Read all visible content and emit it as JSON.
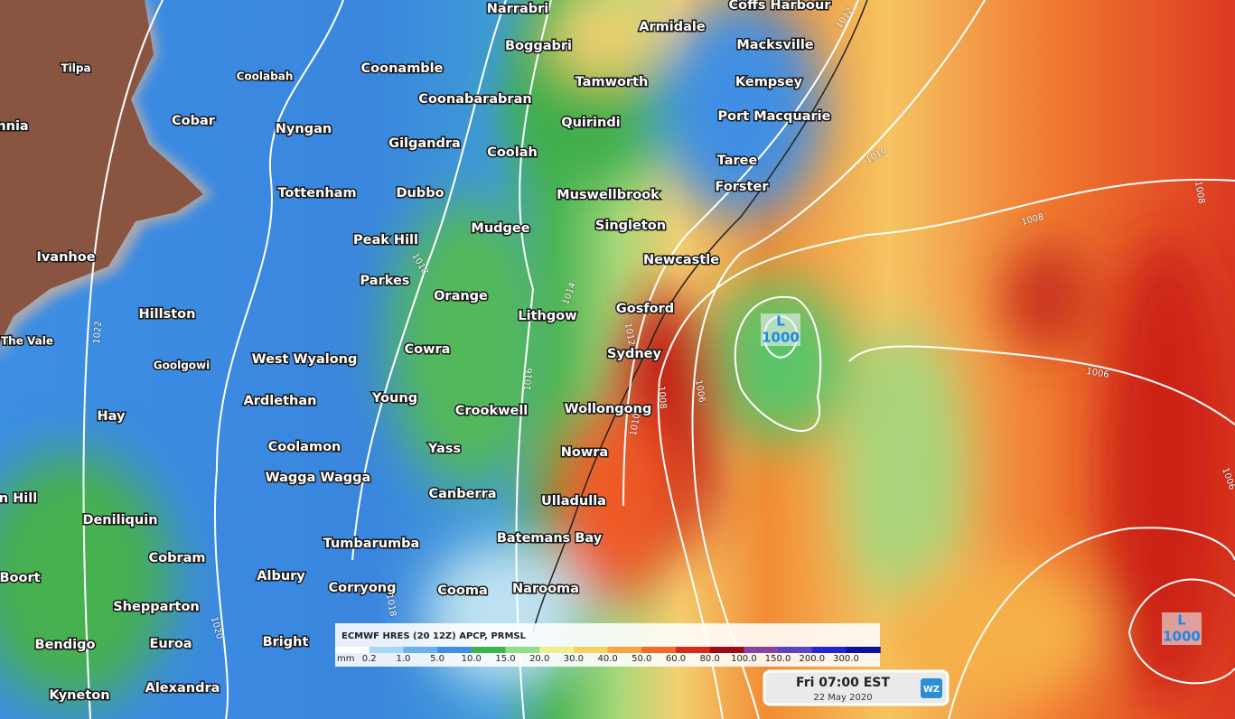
{
  "places": [
    "Narrabri",
    "Armidale",
    "Coffs Harbour",
    "Boggabri",
    "Macksville",
    "Coolabah",
    "Coonamble",
    "Tilpa",
    "Tamworth",
    "Kempsey",
    "Coonabarabran",
    "Port Macquarie",
    "Cobar",
    "Quirindi",
    "nnia",
    "Nyngan",
    "Gilgandra",
    "Coolah",
    "Taree",
    "Forster",
    "Tottenham",
    "Dubbo",
    "Muswellbrook",
    "Singleton",
    "Mudgee",
    "Peak Hill",
    "Newcastle",
    "Ivanhoe",
    "Parkes",
    "Orange",
    "Gosford",
    "Lithgow",
    "Hillston",
    "The Vale",
    "Cowra",
    "Sydney",
    "West Wyalong",
    "Goolgowi",
    "Young",
    "Ardlethan",
    "Wollongong",
    "Crookwell",
    "Hay",
    "Coolamon",
    "Yass",
    "Nowra",
    "Wagga Wagga",
    "Canberra",
    "n Hill",
    "Ulladulla",
    "Deniliquin",
    "Batemans Bay",
    "Tumbarumba",
    "Cobram",
    "Boort",
    "Albury",
    "Corryong",
    "Cooma",
    "Narooma",
    "Shepparton",
    "Bendigo",
    "Euroa",
    "Bright",
    "Alexandra",
    "Kyneton"
  ],
  "lows": [
    {
      "letter": "L",
      "pressure": "1000"
    },
    {
      "letter": "L",
      "pressure": "1000"
    }
  ],
  "isobar_labels": [
    "1012",
    "1010",
    "1008",
    "1008",
    "1018",
    "1014",
    "1012",
    "1008",
    "1006",
    "1010",
    "1016",
    "1006",
    "1022",
    "1020",
    "1006",
    "1018"
  ],
  "legend": {
    "title": "ECMWF HRES (20 12Z) APCP, PRMSL",
    "unit": "mm",
    "labels": [
      "0.2",
      "1.0",
      "5.0",
      "10.0",
      "15.0",
      "20.0",
      "30.0",
      "40.0",
      "50.0",
      "60.0",
      "80.0",
      "100.0",
      "150.0",
      "200.0",
      "300.0"
    ],
    "colors": [
      "#ffffff",
      "#a9d6f2",
      "#6cb1ee",
      "#3f8fe4",
      "#3cb64a",
      "#8edf88",
      "#f2ee90",
      "#f8d062",
      "#f8a442",
      "#f06a2a",
      "#d82a1a",
      "#9c0a12",
      "#8444a4",
      "#5a44c4",
      "#2424d4",
      "#10109e"
    ]
  },
  "timebox": {
    "time": "Fri 07:00 EST",
    "date": "22 May 2020",
    "logo": "WZ"
  }
}
